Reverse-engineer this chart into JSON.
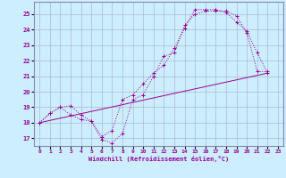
{
  "background_color": "#cceeff",
  "grid_color": "#aabbcc",
  "line_color": "#990099",
  "spine_color": "#8888aa",
  "xlim": [
    -0.5,
    23.5
  ],
  "ylim": [
    16.5,
    25.8
  ],
  "yticks": [
    17,
    18,
    19,
    20,
    21,
    22,
    23,
    24,
    25
  ],
  "xticks": [
    0,
    1,
    2,
    3,
    4,
    5,
    6,
    7,
    8,
    9,
    10,
    11,
    12,
    13,
    14,
    15,
    16,
    17,
    18,
    19,
    20,
    21,
    22,
    23
  ],
  "xlabel": "Windchill (Refroidissement éolien,°C)",
  "line1_x": [
    0,
    1,
    2,
    3,
    4,
    5,
    6,
    7,
    8,
    9,
    10,
    11,
    12,
    13,
    14,
    15,
    16,
    17,
    18,
    19,
    20,
    21,
    22
  ],
  "line1_y": [
    18.0,
    18.6,
    19.0,
    19.1,
    18.5,
    18.1,
    16.9,
    16.7,
    17.3,
    19.5,
    19.8,
    21.0,
    22.3,
    22.5,
    24.3,
    25.0,
    25.2,
    25.2,
    25.2,
    24.9,
    23.8,
    21.3,
    21.3
  ],
  "line2_x": [
    0,
    1,
    2,
    3,
    4,
    5,
    6,
    7,
    8,
    9,
    10,
    11,
    12,
    13,
    14,
    15,
    16,
    17,
    18,
    19,
    20,
    21,
    22
  ],
  "line2_y": [
    18.0,
    18.6,
    19.0,
    18.5,
    18.2,
    18.1,
    17.1,
    17.5,
    19.5,
    19.8,
    20.5,
    21.2,
    21.7,
    22.8,
    24.1,
    25.3,
    25.3,
    25.3,
    25.1,
    24.5,
    23.9,
    22.5,
    21.2
  ],
  "line3_x": [
    0,
    22
  ],
  "line3_y": [
    18.0,
    21.2
  ]
}
